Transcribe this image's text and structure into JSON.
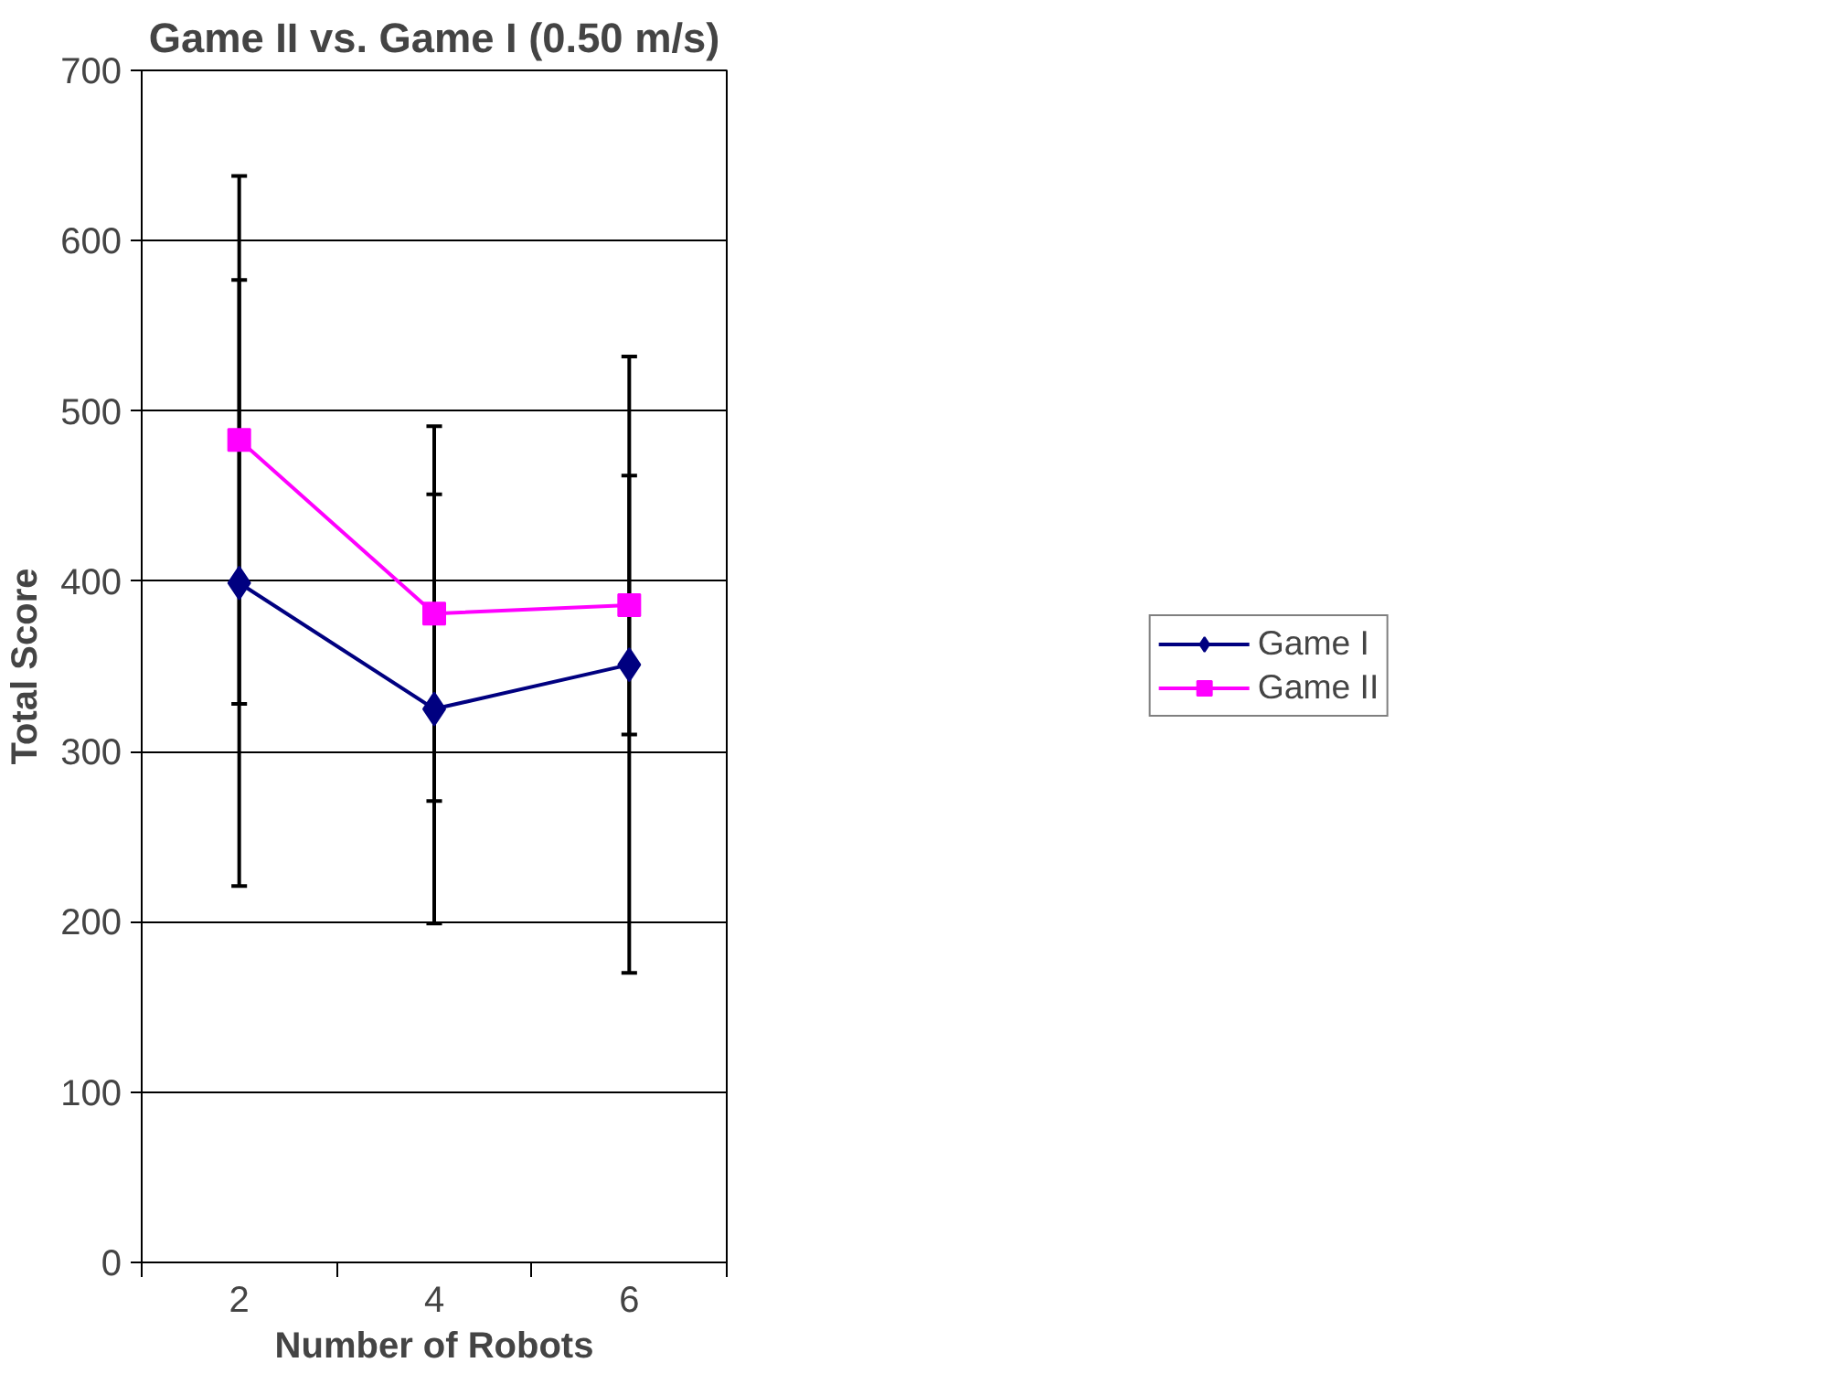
{
  "chart_data": {
    "type": "line",
    "title": "Game II vs. Game I (0.50 m/s)",
    "xlabel": "Number of Robots",
    "ylabel": "Total Score",
    "categories": [
      "2",
      "4",
      "6"
    ],
    "series": [
      {
        "name": "Game I",
        "color": "#000080",
        "marker": "diamond",
        "values": [
          399,
          325,
          351
        ],
        "errors": [
          178,
          126,
          181
        ]
      },
      {
        "name": "Game II",
        "color": "#ff00ff",
        "marker": "square",
        "values": [
          483,
          381,
          386
        ],
        "errors": [
          155,
          110,
          76
        ]
      }
    ],
    "ylim": [
      0,
      700
    ],
    "yticks": [
      0,
      100,
      200,
      300,
      400,
      500,
      600,
      700
    ],
    "grid": "y",
    "legend": "right",
    "line_style": "solid"
  }
}
